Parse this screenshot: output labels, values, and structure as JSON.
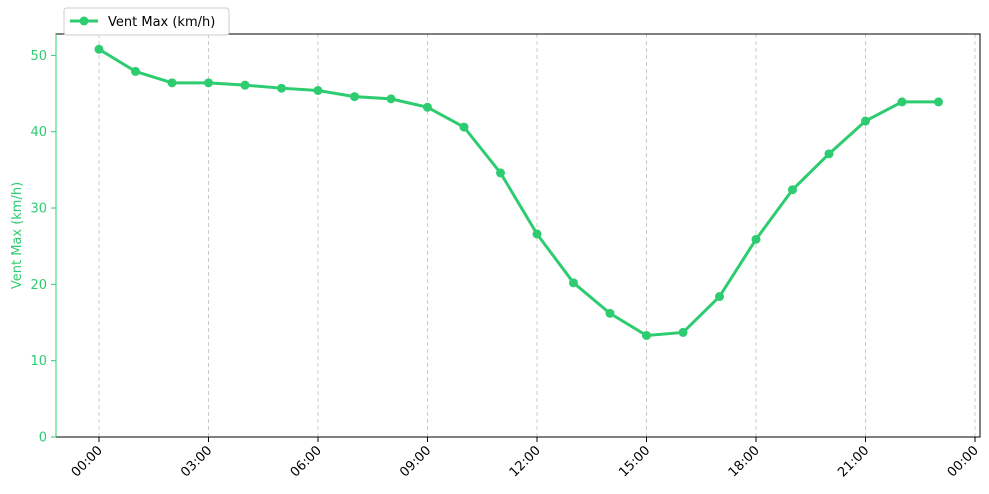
{
  "chart_data": {
    "type": "line",
    "title": "",
    "xlabel": "",
    "ylabel": "Vent Max (km/h)",
    "x": [
      "00:00",
      "01:00",
      "02:00",
      "03:00",
      "04:00",
      "05:00",
      "06:00",
      "07:00",
      "08:00",
      "09:00",
      "10:00",
      "11:00",
      "12:00",
      "13:00",
      "14:00",
      "15:00",
      "16:00",
      "17:00",
      "18:00",
      "19:00",
      "20:00",
      "21:00",
      "22:00",
      "23:00"
    ],
    "series": [
      {
        "name": "Vent Max (km/h)",
        "color": "#2ecc71",
        "values": [
          50.8,
          47.9,
          46.4,
          46.4,
          46.1,
          45.7,
          45.4,
          44.6,
          44.3,
          43.2,
          40.6,
          34.6,
          26.6,
          20.2,
          16.2,
          13.3,
          13.7,
          18.4,
          25.9,
          32.4,
          37.1,
          41.4,
          43.9,
          43.9
        ]
      }
    ],
    "x_ticks": [
      "00:00",
      "03:00",
      "06:00",
      "09:00",
      "12:00",
      "15:00",
      "18:00",
      "21:00",
      "00:00"
    ],
    "y_ticks": [
      "0",
      "10",
      "20",
      "30",
      "40",
      "50"
    ],
    "ylim": [
      0,
      52.8
    ],
    "grid": "vertical dashed",
    "legend_position": "top-left",
    "colors": {
      "line": "#2ecc71",
      "ylabel": "#2ecc71",
      "ytick": "#2ecc71",
      "grid": "#cccccc"
    }
  }
}
